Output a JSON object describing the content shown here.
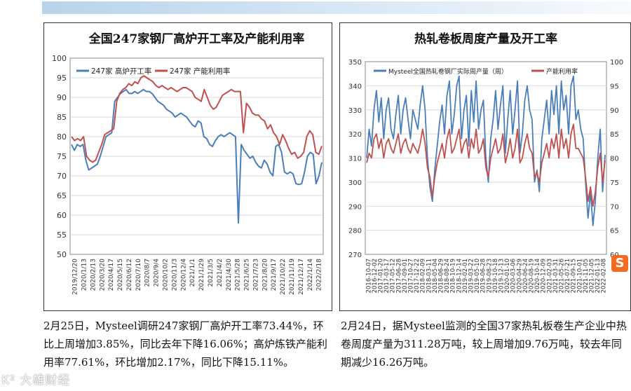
{
  "left_caption": "2月25日，Mysteel调研247家钢厂高炉开工率73.44%，环比上周增加3.85%，同比去年下降16.06%；高炉炼铁产能利用率77.61%，环比增加2.17%，同比下降15.11%。",
  "right_caption": "2月24日，据Mysteel监测的全国37家热轧板卷生产企业中热卷周度产量为311.28万吨，较上周增加9.76万吨，较去年同期减少16.26万吨。",
  "watermark": "K² 大雄财经",
  "sogou_label": "S",
  "chart_data": [
    {
      "type": "line",
      "title": "全国247家钢厂高炉开工率及产能利用率",
      "ylim": [
        50,
        100
      ],
      "yticks": [
        "50",
        "55",
        "60",
        "65",
        "70",
        "75",
        "80",
        "85",
        "90",
        "95",
        "100"
      ],
      "x_labels": [
        "2019/12/20",
        "2020/1/13",
        "2020/2/13",
        "2020/3/20",
        "2020/4/17",
        "2020/5/15",
        "2020/6/12",
        "2020/7/10",
        "2020/8/7",
        "2020/9/4",
        "2020/10/2",
        "2020/11/3",
        "2020/12/4",
        "2021/1/1",
        "2021/1/29",
        "2021/3/5",
        "2021/4/2",
        "2021/4/30",
        "2021/5/28",
        "2021/6/25",
        "2021/7/23",
        "2021/8/20",
        "2021/9/17",
        "2021/10/22",
        "2021/11/19",
        "2021/12/17",
        "2022/1/14",
        "2022/2/18"
      ],
      "legend": "top-left",
      "series": [
        {
          "name": "247家 高炉开工率",
          "color": "#4a7ebb",
          "values": [
            78,
            76.5,
            78,
            77.5,
            78,
            74,
            71.5,
            72,
            72.5,
            73,
            75,
            77.5,
            80,
            80.5,
            81,
            89,
            90,
            91,
            91.5,
            92,
            91,
            91,
            91.5,
            91,
            91.5,
            92,
            91.5,
            91.5,
            91,
            90,
            89,
            88.5,
            88,
            87,
            86.5,
            86,
            85,
            85.5,
            86,
            85.5,
            85,
            84,
            83,
            82.5,
            84,
            83.5,
            80,
            79.5,
            78,
            77.5,
            79,
            80,
            80.5,
            80,
            80.5,
            81,
            80.5,
            80,
            58,
            78,
            76.5,
            75.5,
            74.5,
            75,
            73.5,
            72.5,
            72,
            74,
            73,
            71,
            70,
            77.5,
            78,
            76,
            71,
            70.5,
            71,
            70.5,
            68,
            67.8,
            68,
            71,
            75,
            76,
            75.5,
            68,
            70,
            73.44
          ]
        },
        {
          "name": "247家 产能利用率",
          "color": "#c0504d",
          "values": [
            80,
            79,
            79.5,
            79,
            80,
            75,
            74,
            73.5,
            74,
            76,
            78,
            80.5,
            81,
            81.5,
            82,
            89,
            91,
            92,
            92.5,
            93.5,
            93,
            94,
            93.5,
            95,
            95.5,
            95,
            94.5,
            94,
            93,
            92.5,
            93,
            92.5,
            92,
            92.5,
            92,
            91.5,
            92,
            92.5,
            92.5,
            92,
            91.5,
            90,
            89.5,
            89,
            92,
            90,
            88,
            87,
            87.5,
            89,
            90.5,
            91,
            91.5,
            92,
            91.5,
            91.5,
            91.5,
            81,
            88.5,
            87.5,
            86,
            85.5,
            85.5,
            84.5,
            84,
            82,
            83,
            81,
            80,
            78,
            80.5,
            79,
            77,
            75.5,
            76,
            74.5,
            75,
            76,
            80,
            81.5,
            80.5,
            76,
            75.5,
            77.61
          ]
        }
      ]
    },
    {
      "type": "line",
      "title": "热轧卷板周度产量及开工率",
      "ylim": [
        270,
        350
      ],
      "y2lim": [
        60,
        100
      ],
      "yticks": [
        "270",
        "280",
        "290",
        "300",
        "310",
        "320",
        "330",
        "340",
        "350"
      ],
      "y2ticks": [
        "60",
        "65",
        "70",
        "75",
        "80",
        "85",
        "90",
        "95",
        "100"
      ],
      "x_labels": [
        "2016-10-07",
        "2016-12-02",
        "2017-01-20",
        "2017-03-17",
        "2017-05-12",
        "2017-06-28",
        "2017-09-01",
        "2017-10-27",
        "2017-12-22",
        "2018-02-09",
        "2018-03-11",
        "2018-05-04",
        "2018-06-29",
        "2018-08-24",
        "2018-10-19",
        "2018-12-14",
        "2019-02-01",
        "2019-03-22",
        "2019-05-10",
        "2019-06-28",
        "2019-08-23",
        "2019-10-18",
        "2019-12-13",
        "2020-01-10",
        "2020-03-06",
        "2020-04-29",
        "2020-06-24",
        "2020-08-19",
        "2020-10-14",
        "2020-12-09",
        "2021-02-03",
        "2021-03-31",
        "2021-05-26",
        "2021-07-21",
        "2021-09-15",
        "2021-10-01",
        "2021-11-05",
        "2021-12-05",
        "2022-01-13",
        "2022-02-08"
      ],
      "legend": "top",
      "series": [
        {
          "name": "Mysteel全国热轧卷钢厂实际周产量（周）",
          "color": "#4a7ebb",
          "axis": "left",
          "values": [
            310,
            322,
            315,
            330,
            338,
            325,
            335,
            318,
            330,
            335,
            322,
            318,
            328,
            336,
            320,
            330,
            335,
            326,
            318,
            330,
            326,
            322,
            332,
            340,
            330,
            310,
            298,
            292,
            305,
            315,
            325,
            332,
            320,
            336,
            342,
            320,
            328,
            340,
            344,
            318,
            330,
            336,
            315,
            338,
            325,
            342,
            322,
            330,
            334,
            310,
            300,
            318,
            326,
            338,
            322,
            332,
            340,
            312,
            326,
            338,
            320,
            330,
            342,
            312,
            320,
            334,
            340,
            330,
            326,
            300,
            305,
            296,
            318,
            326,
            334,
            320,
            338,
            328,
            340,
            320,
            342,
            330,
            336,
            320,
            340,
            344,
            326,
            330,
            322,
            318,
            300,
            285,
            296,
            282,
            292,
            310,
            322,
            296,
            311.28
          ]
        },
        {
          "name": "产能利用率",
          "color": "#c0504d",
          "axis": "right",
          "values": [
            79,
            81,
            80,
            84,
            85,
            82,
            84,
            80,
            83,
            84,
            82,
            81,
            83,
            85,
            81,
            83,
            84,
            82,
            81,
            83,
            82,
            81,
            83,
            86,
            83,
            78,
            76,
            72,
            76,
            79,
            81,
            83,
            80,
            84,
            86,
            81,
            82,
            84,
            86,
            81,
            83,
            84,
            80,
            84,
            82,
            86,
            81,
            82,
            84,
            78,
            76,
            80,
            82,
            84,
            81,
            82,
            85,
            79,
            81,
            84,
            80,
            82,
            86,
            79,
            80,
            83,
            85,
            82,
            81,
            76,
            77,
            75,
            79,
            81,
            83,
            80,
            84,
            82,
            85,
            80,
            86,
            82,
            84,
            80,
            85,
            87,
            82,
            82,
            81,
            80,
            76,
            71,
            74,
            70,
            73,
            78,
            81,
            75,
            79.5
          ]
        }
      ]
    }
  ]
}
